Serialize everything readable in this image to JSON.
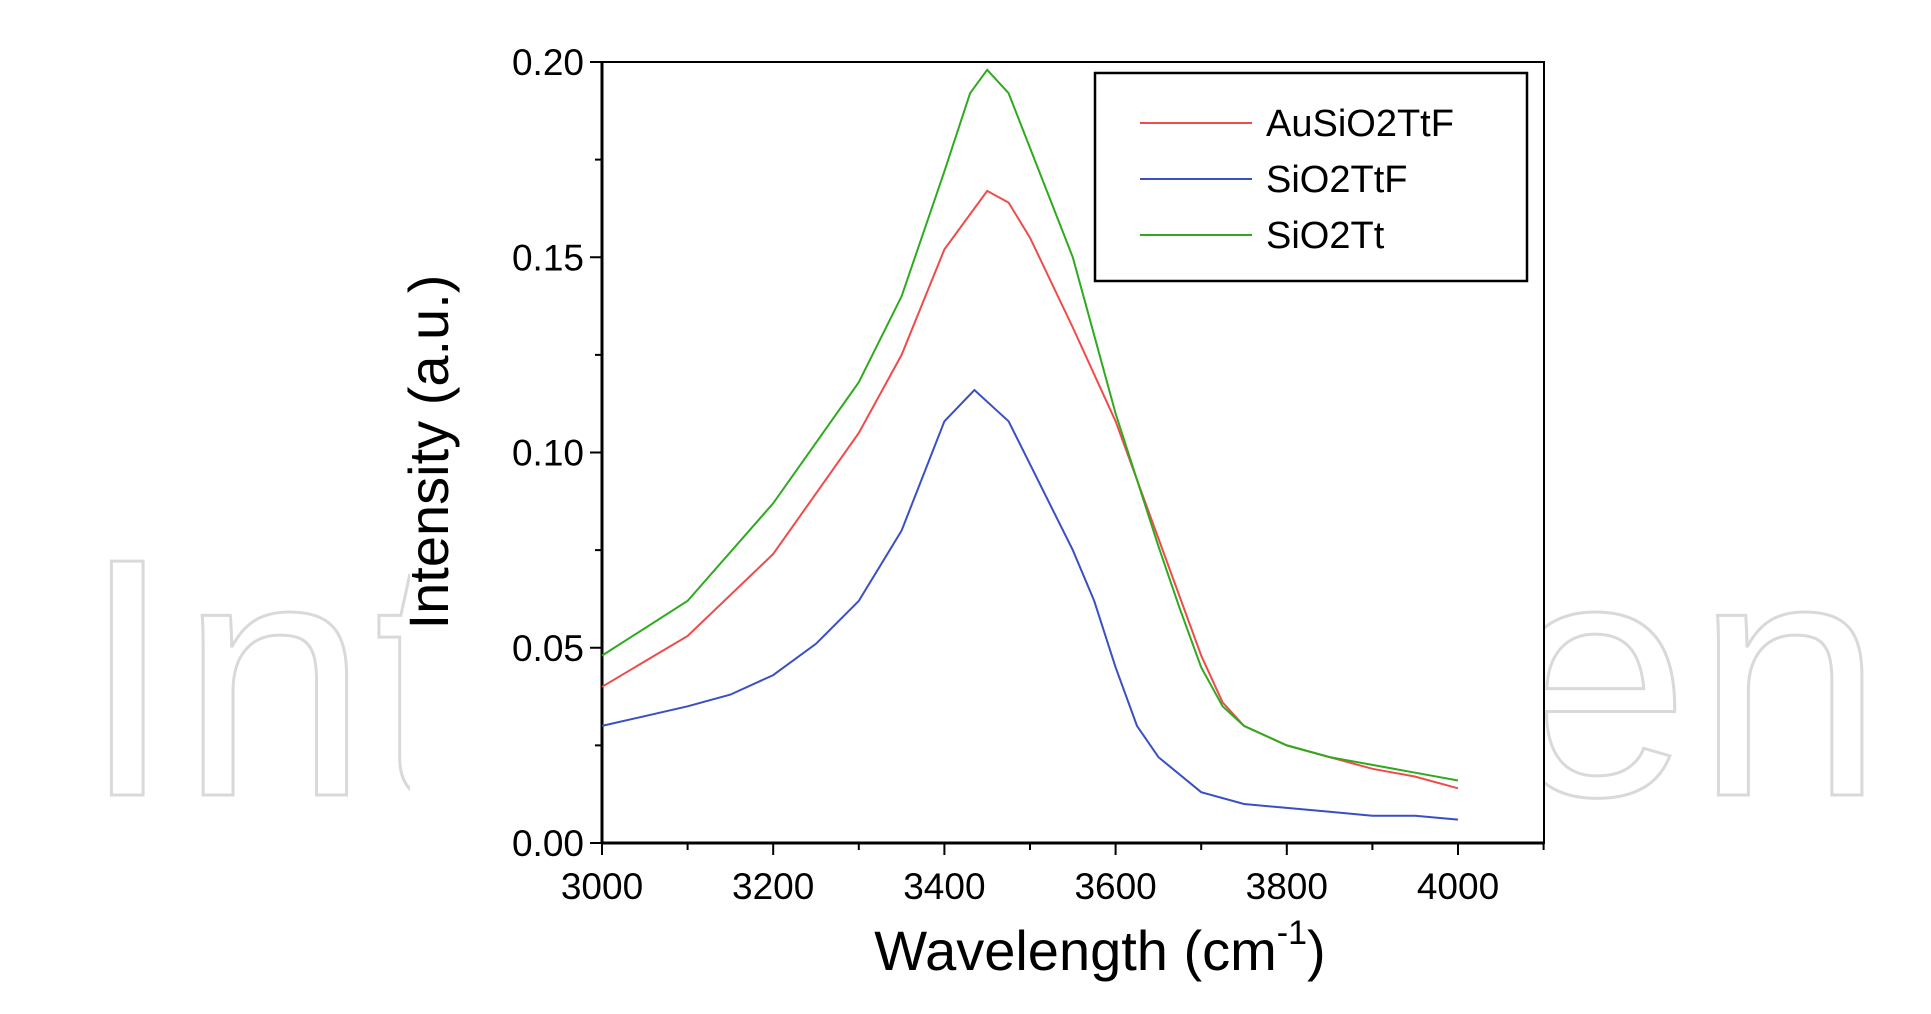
{
  "watermark": "IntechOpen",
  "chart_data": {
    "type": "line",
    "title": "",
    "xlabel": "Wavelength (cm",
    "xlabel_superscript": "-1",
    "xlabel_close": ")",
    "ylabel": "Intensity (a.u.)",
    "xlim": [
      3000,
      4100
    ],
    "ylim": [
      0,
      0.2
    ],
    "x_ticks": [
      3000,
      3200,
      3400,
      3600,
      3800,
      4000
    ],
    "x_tick_labels": [
      "3000",
      "3200",
      "3400",
      "3600",
      "3800",
      "4000"
    ],
    "y_ticks": [
      0,
      0.05,
      0.1,
      0.15,
      0.2
    ],
    "y_tick_labels": [
      "0.00",
      "0.05",
      "0.10",
      "0.15",
      "0.20"
    ],
    "grid": false,
    "legend_position": "top-right",
    "series": [
      {
        "name": "AuSiO2TtF",
        "color": "#ef4b4b",
        "x": [
          3000,
          3100,
          3200,
          3300,
          3350,
          3400,
          3450,
          3475,
          3500,
          3550,
          3600,
          3625,
          3650,
          3675,
          3700,
          3725,
          3750,
          3800,
          3850,
          3900,
          3950,
          4000
        ],
        "y": [
          0.04,
          0.053,
          0.074,
          0.105,
          0.125,
          0.152,
          0.167,
          0.164,
          0.155,
          0.132,
          0.108,
          0.093,
          0.078,
          0.063,
          0.048,
          0.036,
          0.03,
          0.025,
          0.022,
          0.019,
          0.017,
          0.014
        ]
      },
      {
        "name": "SiO2TtF",
        "color": "#3a4fc4",
        "x": [
          3000,
          3100,
          3150,
          3200,
          3250,
          3300,
          3350,
          3400,
          3435,
          3475,
          3500,
          3550,
          3575,
          3600,
          3625,
          3650,
          3700,
          3750,
          3800,
          3850,
          3900,
          3950,
          4000
        ],
        "y": [
          0.03,
          0.035,
          0.038,
          0.043,
          0.051,
          0.062,
          0.08,
          0.108,
          0.116,
          0.108,
          0.097,
          0.075,
          0.062,
          0.045,
          0.03,
          0.022,
          0.013,
          0.01,
          0.009,
          0.008,
          0.007,
          0.007,
          0.006
        ]
      },
      {
        "name": "SiO2Tt",
        "color": "#2faa1f",
        "x": [
          3000,
          3100,
          3200,
          3300,
          3350,
          3400,
          3430,
          3450,
          3475,
          3500,
          3550,
          3575,
          3600,
          3625,
          3650,
          3675,
          3700,
          3725,
          3750,
          3800,
          3850,
          3900,
          3950,
          4000
        ],
        "y": [
          0.048,
          0.062,
          0.087,
          0.118,
          0.14,
          0.172,
          0.192,
          0.198,
          0.192,
          0.178,
          0.15,
          0.13,
          0.11,
          0.093,
          0.076,
          0.06,
          0.045,
          0.035,
          0.03,
          0.025,
          0.022,
          0.02,
          0.018,
          0.016
        ]
      }
    ]
  }
}
